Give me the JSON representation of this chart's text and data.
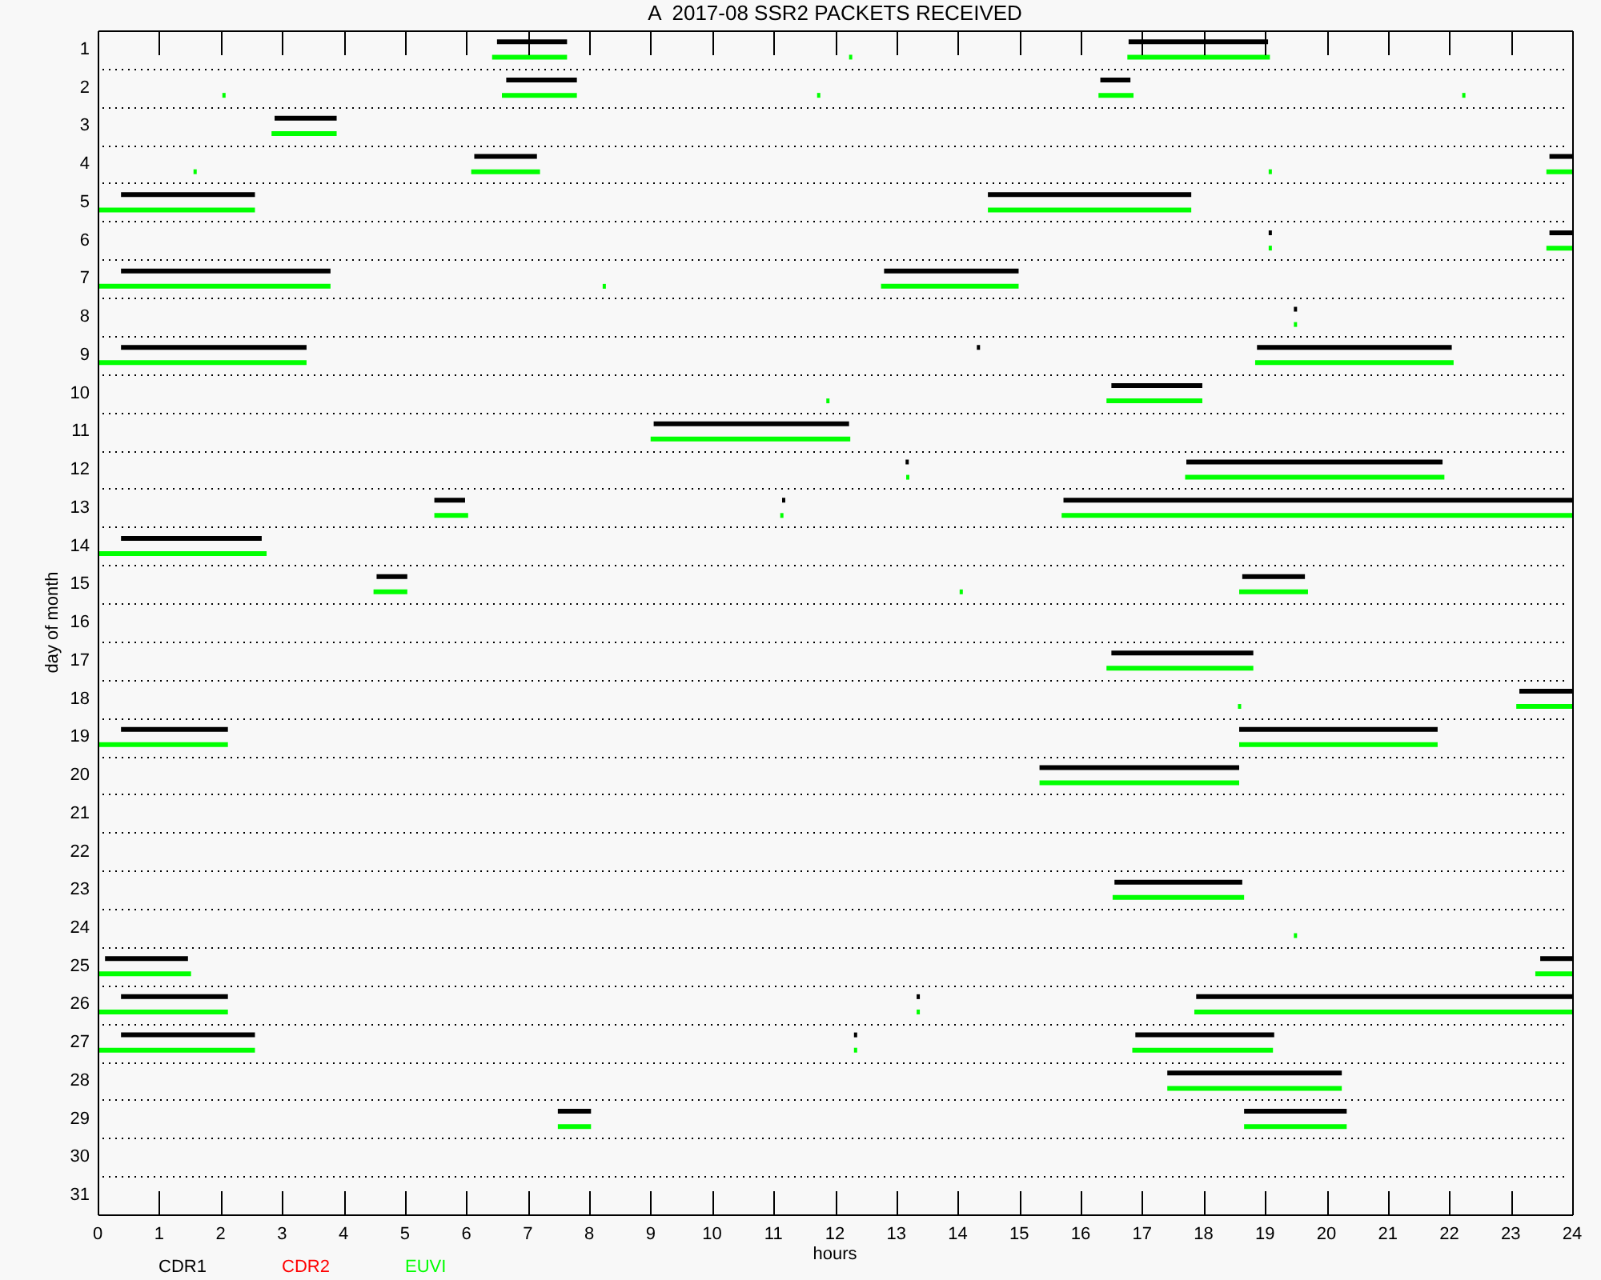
{
  "chart_data": {
    "type": "bar",
    "orientation": "horizontal",
    "title": "A  2017-08 SSR2 PACKETS RECEIVED",
    "xlabel": "hours",
    "ylabel": "day of month",
    "categories": [
      "1",
      "2",
      "3",
      "4",
      "5",
      "6",
      "7",
      "8",
      "9",
      "10",
      "11",
      "12",
      "13",
      "14",
      "15",
      "16",
      "17",
      "18",
      "19",
      "20",
      "21",
      "22",
      "23",
      "24",
      "25",
      "26",
      "27",
      "28",
      "29",
      "30",
      "31"
    ],
    "xlim": [
      0,
      24
    ],
    "xticks": [
      0,
      1,
      2,
      3,
      4,
      5,
      6,
      7,
      8,
      9,
      10,
      11,
      12,
      13,
      14,
      15,
      16,
      17,
      18,
      19,
      20,
      21,
      22,
      23,
      24
    ],
    "grid": "y",
    "legend": "bottom left",
    "series": [
      {
        "name": "CDR1",
        "color": "#000000",
        "base": [
          6.5,
          6.65,
          2.88,
          6.13,
          0.38,
          19.06,
          0.38,
          19.47,
          0.38,
          16.5,
          9.05,
          13.15,
          5.48,
          0.38,
          4.54,
          null,
          16.5,
          23.14,
          0.38,
          15.33,
          null,
          null,
          16.55,
          null,
          0.12,
          0.38,
          0.38,
          17.41,
          7.49,
          null,
          null
        ],
        "values": [
          1.14,
          1.15,
          1.01,
          1.02,
          2.18,
          0.03,
          3.41,
          0.03,
          3.02,
          1.48,
          3.18,
          0.03,
          0.5,
          2.29,
          0.5,
          null,
          2.31,
          0.86,
          1.74,
          3.25,
          null,
          null,
          2.08,
          null,
          1.35,
          1.74,
          2.18,
          2.84,
          0.54,
          null,
          null
        ]
      },
      {
        "color": "#000000",
        "base": [
          16.78,
          16.32,
          null,
          23.63,
          14.49,
          23.63,
          12.8,
          null,
          14.31,
          null,
          null,
          17.72,
          11.14,
          null,
          18.63,
          null,
          null,
          null,
          18.58,
          null,
          null,
          null,
          null,
          null,
          23.48,
          13.33,
          12.31,
          null,
          18.66,
          null,
          null
        ],
        "values": [
          2.27,
          0.49,
          null,
          0.37,
          3.31,
          0.37,
          2.19,
          null,
          0.03,
          null,
          null,
          4.17,
          0.03,
          null,
          1.02,
          null,
          null,
          null,
          3.23,
          null,
          null,
          null,
          null,
          null,
          0.52,
          0.03,
          0.03,
          null,
          1.67,
          null,
          null
        ]
      },
      {
        "color": "#000000",
        "base": [
          null,
          null,
          null,
          null,
          null,
          null,
          null,
          null,
          18.87,
          null,
          null,
          null,
          15.72,
          null,
          null,
          null,
          null,
          null,
          null,
          null,
          null,
          null,
          null,
          null,
          null,
          17.88,
          16.89,
          null,
          null,
          null,
          null
        ],
        "values": [
          null,
          null,
          null,
          null,
          null,
          null,
          null,
          null,
          3.17,
          null,
          null,
          null,
          8.28,
          null,
          null,
          null,
          null,
          null,
          null,
          null,
          null,
          null,
          null,
          null,
          null,
          6.12,
          2.26,
          null,
          null,
          null,
          null
        ]
      },
      {
        "name": "CDR2",
        "color": "#ff0000",
        "values": [
          null,
          null,
          null,
          null,
          null,
          null,
          null,
          null,
          null,
          null,
          null,
          null,
          null,
          null,
          null,
          null,
          null,
          null,
          null,
          null,
          null,
          null,
          null,
          null,
          null,
          null,
          null,
          null,
          null,
          null,
          null
        ]
      },
      {
        "name": "EUVI",
        "color": "#00ff00",
        "base": [
          6.42,
          2.03,
          2.83,
          1.56,
          0,
          19.06,
          0,
          19.47,
          0,
          11.86,
          9,
          13.16,
          5.48,
          0,
          4.49,
          null,
          16.42,
          18.56,
          0,
          15.33,
          null,
          null,
          16.52,
          19.47,
          0,
          0,
          0,
          17.41,
          7.49,
          null,
          null
        ],
        "values": [
          1.22,
          0.03,
          1.06,
          0.03,
          2.56,
          0.03,
          3.79,
          0.03,
          3.4,
          0.03,
          3.25,
          0.03,
          0.55,
          2.75,
          0.55,
          null,
          2.39,
          0.03,
          2.12,
          3.25,
          null,
          null,
          2.14,
          0.03,
          1.52,
          2.12,
          2.56,
          2.84,
          0.54,
          null,
          null
        ]
      },
      {
        "color": "#00ff00",
        "base": [
          12.23,
          6.58,
          null,
          6.08,
          14.49,
          23.58,
          8.22,
          null,
          18.84,
          16.42,
          null,
          17.7,
          11.11,
          null,
          14.03,
          null,
          null,
          23.09,
          18.58,
          null,
          null,
          null,
          null,
          null,
          23.4,
          13.33,
          12.31,
          null,
          18.66,
          null,
          null
        ],
        "values": [
          0.03,
          1.22,
          null,
          1.12,
          3.31,
          0.42,
          0.03,
          null,
          3.23,
          1.56,
          null,
          4.22,
          0.03,
          null,
          0.03,
          null,
          null,
          0.91,
          3.23,
          null,
          null,
          null,
          null,
          null,
          0.6,
          0.03,
          0.03,
          null,
          1.67,
          null,
          null
        ]
      },
      {
        "color": "#00ff00",
        "base": [
          16.76,
          11.71,
          null,
          19.06,
          null,
          null,
          12.75,
          null,
          null,
          null,
          null,
          null,
          15.69,
          null,
          18.58,
          null,
          null,
          null,
          null,
          null,
          null,
          null,
          null,
          null,
          null,
          17.85,
          16.84,
          null,
          null,
          null,
          null
        ],
        "values": [
          2.32,
          0.03,
          null,
          0.03,
          null,
          null,
          2.24,
          null,
          null,
          null,
          null,
          null,
          8.31,
          null,
          1.12,
          null,
          null,
          null,
          null,
          null,
          null,
          null,
          null,
          null,
          null,
          6.15,
          2.29,
          null,
          null,
          null,
          null
        ]
      },
      {
        "color": "#00ff00",
        "base": [
          null,
          16.29,
          null,
          23.58,
          null,
          null,
          null,
          null,
          null,
          null,
          null,
          null,
          null,
          null,
          null,
          null,
          null,
          null,
          null,
          null,
          null,
          null,
          null,
          null,
          null,
          null,
          null,
          null,
          null,
          null,
          null
        ],
        "values": [
          null,
          0.57,
          null,
          0.42,
          null,
          null,
          null,
          null,
          null,
          null,
          null,
          null,
          null,
          null,
          null,
          null,
          null,
          null,
          null,
          null,
          null,
          null,
          null,
          null,
          null,
          null,
          null,
          null,
          null,
          null,
          null
        ]
      },
      {
        "color": "#00ff00",
        "base": [
          null,
          22.21,
          null,
          null,
          null,
          null,
          null,
          null,
          null,
          null,
          null,
          null,
          null,
          null,
          null,
          null,
          null,
          null,
          null,
          null,
          null,
          null,
          null,
          null,
          null,
          null,
          null,
          null,
          null,
          null,
          null
        ],
        "values": [
          null,
          0.03,
          null,
          null,
          null,
          null,
          null,
          null,
          null,
          null,
          null,
          null,
          null,
          null,
          null,
          null,
          null,
          null,
          null,
          null,
          null,
          null,
          null,
          null,
          null,
          null,
          null,
          null,
          null,
          null,
          null
        ]
      }
    ]
  }
}
